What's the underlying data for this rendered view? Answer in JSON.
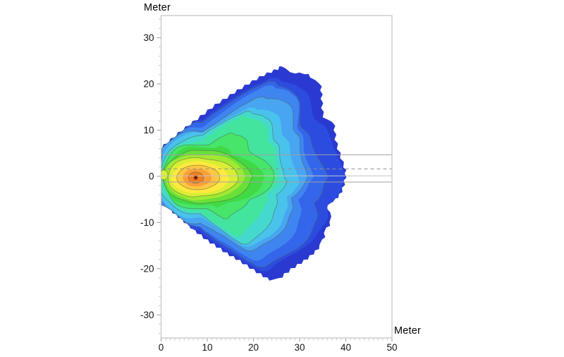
{
  "chart_data": {
    "type": "filled-contour",
    "title": "",
    "xlabel": "Meter",
    "ylabel": "Meter",
    "xlim": [
      0,
      50
    ],
    "ylim": [
      -35,
      34.8
    ],
    "x_major_ticks": [
      0,
      10,
      20,
      30,
      40,
      50
    ],
    "x_minor_step": 1,
    "y_major_ticks": [
      30,
      20,
      10,
      0,
      -10,
      -20,
      -30
    ],
    "y_minor_step": 2,
    "grid": false,
    "legend": "none",
    "frame_color": "#c6c6c6",
    "major_tick_color": "#9a9a9a",
    "minor_tick_color": "#c6c6c6",
    "label_color": "#111111",
    "contour_line_color": "rgba(78,96,70,0.6)",
    "source_point": {
      "x": 7.5,
      "y": -0.3,
      "marker": "asterisk",
      "marker_color": "#4a1206"
    },
    "reference_lines": [
      {
        "y": 4.65,
        "style": "solid",
        "color": "#a0a0a0"
      },
      {
        "y": 1.6,
        "style": "dashed",
        "color": "#8f8f8f"
      },
      {
        "y": 0.1,
        "style": "solid",
        "color": "#c6c6c6"
      },
      {
        "y": -1.25,
        "style": "solid",
        "color": "#a0a0a0"
      }
    ],
    "outer_color": "#2a3ad0",
    "outer_boundary": [
      [
        0,
        6.2
      ],
      [
        1.4,
        7.3
      ],
      [
        3,
        8.7
      ],
      [
        4.6,
        10
      ],
      [
        6.2,
        11.2
      ],
      [
        7.8,
        12.4
      ],
      [
        9.4,
        13.6
      ],
      [
        11,
        14.9
      ],
      [
        12.6,
        16
      ],
      [
        14.2,
        17
      ],
      [
        15.8,
        18.1
      ],
      [
        17.4,
        19.1
      ],
      [
        19,
        20.1
      ],
      [
        20.6,
        21
      ],
      [
        22.2,
        21.9
      ],
      [
        23.8,
        22.6
      ],
      [
        25.2,
        23.2
      ],
      [
        26.3,
        24
      ],
      [
        27.2,
        23.5
      ],
      [
        28,
        22.8
      ],
      [
        29,
        22.5
      ],
      [
        30,
        22.7
      ],
      [
        31.2,
        22.3
      ],
      [
        32.4,
        21.6
      ],
      [
        33.6,
        21
      ],
      [
        34.4,
        20.2
      ],
      [
        34.7,
        18.6
      ],
      [
        34.8,
        16.8
      ],
      [
        34.9,
        14.8
      ],
      [
        35.1,
        13
      ],
      [
        36.2,
        12.5
      ],
      [
        37.3,
        11.8
      ],
      [
        37.6,
        10
      ],
      [
        37.8,
        8
      ],
      [
        38.3,
        6
      ],
      [
        39,
        4
      ],
      [
        39.7,
        2
      ],
      [
        40,
        0.6
      ],
      [
        39.8,
        -1
      ],
      [
        39.4,
        -2.6
      ],
      [
        38.7,
        -4
      ],
      [
        37.7,
        -5
      ],
      [
        36.5,
        -5.8
      ],
      [
        36.1,
        -6.8
      ],
      [
        36.9,
        -7.8
      ],
      [
        37.1,
        -8.8
      ],
      [
        36.7,
        -10
      ],
      [
        36,
        -11.2
      ],
      [
        35.5,
        -12.4
      ],
      [
        35.1,
        -13.8
      ],
      [
        34.5,
        -15
      ],
      [
        33.5,
        -16.2
      ],
      [
        32.3,
        -17.3
      ],
      [
        31,
        -18.3
      ],
      [
        29.6,
        -19.2
      ],
      [
        28.2,
        -20.1
      ],
      [
        26.8,
        -21.2
      ],
      [
        25.5,
        -22.3
      ],
      [
        24.2,
        -22.6
      ],
      [
        22.9,
        -22.1
      ],
      [
        21.5,
        -21.2
      ],
      [
        20,
        -20.3
      ],
      [
        18.5,
        -19.3
      ],
      [
        17,
        -18.3
      ],
      [
        15.6,
        -17.5
      ],
      [
        14.2,
        -16.7
      ],
      [
        12.8,
        -15.7
      ],
      [
        11.4,
        -14.8
      ],
      [
        10,
        -13.9
      ],
      [
        8.6,
        -12.8
      ],
      [
        7.2,
        -11.7
      ],
      [
        5.8,
        -10.5
      ],
      [
        4.4,
        -9.3
      ],
      [
        3.2,
        -8.3
      ],
      [
        2.1,
        -7.4
      ],
      [
        1.1,
        -6.8
      ],
      [
        0.3,
        -6.5
      ],
      [
        0,
        -6.4
      ]
    ],
    "levels": [
      {
        "right": 30.6,
        "up": 12.6,
        "left": 11.5,
        "down": 11.6,
        "color": "#2c4ce0",
        "line": false
      },
      {
        "right": 28.3,
        "up": 11.8,
        "left": 10.4,
        "down": 10.9,
        "color": "#3366ea",
        "line": true
      },
      {
        "right": 26.1,
        "up": 11.0,
        "left": 9.5,
        "down": 10.2,
        "color": "#3f85f0",
        "line": false
      },
      {
        "right": 24.0,
        "up": 10.2,
        "left": 8.8,
        "down": 9.5,
        "color": "#48a5f2",
        "line": true
      },
      {
        "right": 22.0,
        "up": 9.4,
        "left": 8.2,
        "down": 8.8,
        "color": "#49c2ec",
        "line": false
      },
      {
        "right": 20.0,
        "up": 8.7,
        "left": 7.8,
        "down": 8.1,
        "color": "#45d8cf",
        "line": true
      },
      {
        "right": 18.1,
        "up": 8.0,
        "left": 7.5,
        "down": 7.4,
        "color": "#43e49e",
        "line": false
      },
      {
        "right": 16.2,
        "up": 7.3,
        "left": 7.2,
        "down": 6.7,
        "color": "#47e569",
        "line": true
      },
      {
        "right": 14.4,
        "up": 6.6,
        "left": 7.0,
        "down": 6.1,
        "color": "#41d944",
        "line": false
      },
      {
        "right": 12.6,
        "up": 5.9,
        "left": 6.9,
        "down": 5.5,
        "color": "#68e039",
        "line": true
      },
      {
        "right": 10.8,
        "up": 5.1,
        "left": 6.6,
        "down": 4.8,
        "color": "#a1e832",
        "line": false
      },
      {
        "right": 9.0,
        "up": 4.3,
        "left": 6.2,
        "down": 4.1,
        "color": "#d7ee35",
        "line": true
      },
      {
        "right": 7.2,
        "up": 3.5,
        "left": 5.2,
        "down": 3.4,
        "color": "#ffe93e",
        "line": false
      },
      {
        "right": 5.3,
        "up": 2.7,
        "left": 4.0,
        "down": 2.6,
        "color": "#ffc640",
        "line": true
      },
      {
        "right": 3.4,
        "up": 1.9,
        "left": 2.8,
        "down": 1.9,
        "color": "#fa9e37",
        "line": false
      },
      {
        "right": 1.7,
        "up": 1.2,
        "left": 1.6,
        "down": 1.2,
        "color": "#f57c21",
        "line": true
      }
    ],
    "feature_oval": {
      "x": 0.6,
      "y": 0.3,
      "rx": 0.85,
      "ry": 1.05,
      "color": "#d9ef35"
    }
  }
}
